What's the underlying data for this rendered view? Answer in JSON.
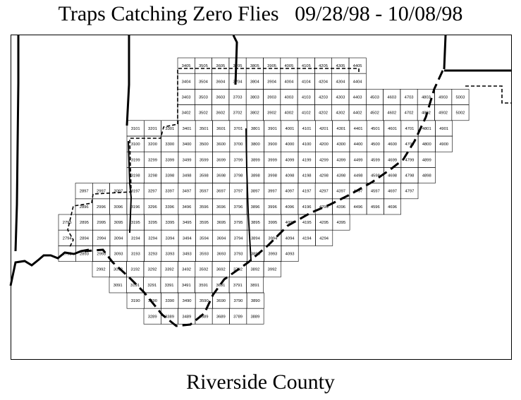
{
  "title": "Traps Catching Zero Flies   09/28/98 - 10/08/98",
  "caption": "Riverside County",
  "grid": {
    "rows": [
      [
        "3405",
        "3505",
        "3605",
        "3705",
        "3805",
        "3905",
        "4005",
        "4105",
        "4205",
        "4305",
        "4405"
      ],
      [
        "3404",
        "3504",
        "3604",
        "3704",
        "3804",
        "3904",
        "4004",
        "4104",
        "4204",
        "4304",
        "4404"
      ],
      [
        "3403",
        "3503",
        "3603",
        "3703",
        "3803",
        "3903",
        "4003",
        "4103",
        "4203",
        "4303",
        "4403",
        "4503",
        "4603",
        "4703",
        "4803",
        "4903",
        "5003"
      ],
      [
        "3402",
        "3502",
        "3602",
        "3702",
        "3802",
        "3902",
        "4002",
        "4102",
        "4202",
        "4302",
        "4402",
        "4502",
        "4602",
        "4702",
        "4802",
        "4902",
        "5002"
      ],
      [
        "3101",
        "3201",
        "3301",
        "3401",
        "3501",
        "3601",
        "3701",
        "3801",
        "3901",
        "4001",
        "4101",
        "4201",
        "4301",
        "4401",
        "4501",
        "4601",
        "4701",
        "4801",
        "4901"
      ],
      [
        "3100",
        "3200",
        "3300",
        "3400",
        "3500",
        "3600",
        "3700",
        "3800",
        "3900",
        "4000",
        "4100",
        "4200",
        "4300",
        "4400",
        "4500",
        "4600",
        "4700",
        "4800",
        "4900"
      ],
      [
        "3199",
        "3299",
        "3399",
        "3499",
        "3599",
        "3699",
        "3799",
        "3899",
        "3999",
        "4099",
        "4199",
        "4299",
        "4399",
        "4499",
        "4599",
        "4699",
        "4799",
        "4899"
      ],
      [
        "3198",
        "3298",
        "3398",
        "3498",
        "3598",
        "3698",
        "3798",
        "3898",
        "3998",
        "4098",
        "4198",
        "4298",
        "4398",
        "4498",
        "4598",
        "4698",
        "4798",
        "4898"
      ],
      [
        "2897",
        "2997",
        "3097",
        "3197",
        "3297",
        "3397",
        "3497",
        "3597",
        "3697",
        "3797",
        "3897",
        "3997",
        "4097",
        "4197",
        "4297",
        "4397",
        "4497",
        "4597",
        "4697",
        "4797"
      ],
      [
        "2896",
        "2996",
        "3096",
        "3196",
        "3296",
        "3396",
        "3496",
        "3596",
        "3696",
        "3796",
        "3896",
        "3996",
        "4096",
        "4196",
        "4296",
        "4396",
        "4496",
        "4596",
        "4696"
      ],
      [
        "2795",
        "2895",
        "2995",
        "3095",
        "3195",
        "3295",
        "3395",
        "3495",
        "3595",
        "3695",
        "3795",
        "3895",
        "3995",
        "4095",
        "4195",
        "4295",
        "4395"
      ],
      [
        "2794",
        "2894",
        "2994",
        "3094",
        "3194",
        "3294",
        "3394",
        "3494",
        "3594",
        "3694",
        "3794",
        "3894",
        "3994",
        "4094",
        "4194",
        "4294"
      ],
      [
        "2793",
        "2893",
        "2993",
        "3093",
        "3193",
        "3293",
        "3393",
        "3493",
        "3593",
        "3693",
        "3793",
        "3893",
        "3993",
        "4093"
      ],
      [
        "2992",
        "3092",
        "3192",
        "3292",
        "3392",
        "3492",
        "3592",
        "3692",
        "3792",
        "3892",
        "3992"
      ],
      [
        "3091",
        "3191",
        "3291",
        "3391",
        "3491",
        "3591",
        "3691",
        "3791",
        "3891"
      ],
      [
        "3190",
        "3290",
        "3390",
        "3490",
        "3590",
        "3690",
        "3790",
        "3890"
      ],
      [
        "3289",
        "3389",
        "3489",
        "3589",
        "3689",
        "3789",
        "3889"
      ]
    ]
  }
}
